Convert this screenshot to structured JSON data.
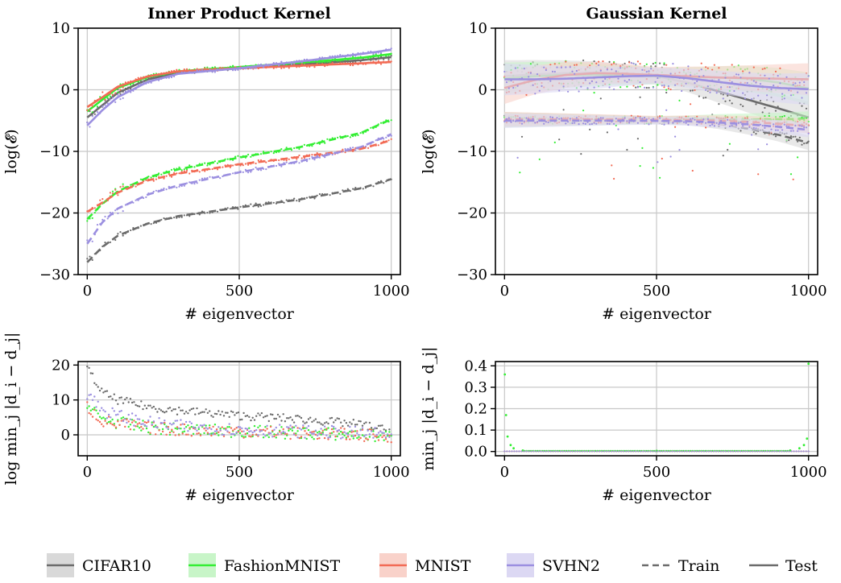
{
  "legend": {
    "items": [
      {
        "label": "CIFAR10",
        "color": "#6b6b6b",
        "band": "#d9d9d9"
      },
      {
        "label": "FashionMNIST",
        "color": "#33ee33",
        "band": "#c8f5c8"
      },
      {
        "label": "MNIST",
        "color": "#f26b55",
        "band": "#f9d2ca"
      },
      {
        "label": "SVHN2",
        "color": "#9b8fe0",
        "band": "#dcd8f3"
      }
    ],
    "train_label": "Train",
    "test_label": "Test"
  },
  "chart_data": [
    {
      "type": "line",
      "title": "Inner Product Kernel",
      "xlabel": "# eigenvector",
      "ylabel": "log(𝓔)",
      "xlim": [
        -30,
        1030
      ],
      "ylim": [
        -30,
        10
      ],
      "xticks": [
        "0",
        "500",
        "1000"
      ],
      "yticks": [
        "10",
        "0",
        "−10",
        "−20",
        "−30"
      ],
      "grid": true,
      "series": [
        {
          "name": "CIFAR10",
          "kind": "test",
          "x": [
            0,
            50,
            100,
            200,
            300,
            500,
            700,
            900,
            1000
          ],
          "y": [
            -4.5,
            -2.5,
            -0.5,
            1.7,
            2.8,
            3.5,
            4.1,
            4.8,
            5.3
          ]
        },
        {
          "name": "FashionMNIST",
          "kind": "test",
          "x": [
            0,
            50,
            100,
            200,
            300,
            500,
            700,
            900,
            1000
          ],
          "y": [
            -3.5,
            -1.6,
            0.3,
            2.1,
            3.0,
            3.7,
            4.4,
            5.2,
            5.8
          ]
        },
        {
          "name": "MNIST",
          "kind": "test",
          "x": [
            0,
            50,
            100,
            200,
            300,
            500,
            700,
            900,
            1000
          ],
          "y": [
            -2.8,
            -1.2,
            0.5,
            2.2,
            3.0,
            3.5,
            3.9,
            4.3,
            4.5
          ]
        },
        {
          "name": "SVHN2",
          "kind": "test",
          "x": [
            0,
            50,
            100,
            200,
            300,
            500,
            700,
            900,
            1000
          ],
          "y": [
            -5.8,
            -3.3,
            -1.2,
            1.3,
            2.6,
            3.5,
            4.6,
            5.8,
            6.5
          ]
        },
        {
          "name": "CIFAR10",
          "kind": "train",
          "x": [
            0,
            50,
            100,
            200,
            300,
            500,
            700,
            900,
            1000
          ],
          "y": [
            -28,
            -25.5,
            -23.7,
            -21.7,
            -20.5,
            -19.1,
            -17.8,
            -16,
            -14.5
          ]
        },
        {
          "name": "FashionMNIST",
          "kind": "train",
          "x": [
            0,
            50,
            100,
            200,
            300,
            500,
            700,
            900,
            1000
          ],
          "y": [
            -21,
            -18.5,
            -16.5,
            -14.2,
            -12.9,
            -11,
            -9.3,
            -7,
            -4.8
          ]
        },
        {
          "name": "MNIST",
          "kind": "train",
          "x": [
            0,
            50,
            100,
            200,
            300,
            500,
            700,
            900,
            1000
          ],
          "y": [
            -19.8,
            -18.3,
            -16.7,
            -14.7,
            -13.6,
            -12.1,
            -10.9,
            -9.6,
            -8.2
          ]
        },
        {
          "name": "SVHN2",
          "kind": "train",
          "x": [
            0,
            50,
            100,
            200,
            300,
            500,
            700,
            900,
            1000
          ],
          "y": [
            -25,
            -21.5,
            -19.3,
            -17,
            -15.5,
            -13.4,
            -11.6,
            -9.3,
            -7.2
          ]
        }
      ]
    },
    {
      "type": "line",
      "title": "Gaussian Kernel",
      "xlabel": "# eigenvector",
      "ylabel": "log(𝓔)",
      "xlim": [
        -30,
        1030
      ],
      "ylim": [
        -30,
        10
      ],
      "xticks": [
        "0",
        "500",
        "1000"
      ],
      "yticks": [
        "10",
        "0",
        "−10",
        "−20",
        "−30"
      ],
      "grid": true,
      "series": [
        {
          "name": "CIFAR10",
          "kind": "test",
          "x": [
            0,
            100,
            200,
            300,
            400,
            500,
            600,
            700,
            800,
            900,
            1000
          ],
          "y": [
            2.2,
            2.5,
            2.7,
            2.8,
            2.6,
            2.2,
            1.2,
            -0.2,
            -1.6,
            -3,
            -4.5
          ]
        },
        {
          "name": "FashionMNIST",
          "kind": "test",
          "x": [
            0,
            100,
            200,
            300,
            400,
            500,
            600,
            700,
            800,
            900,
            1000
          ],
          "y": [
            1.8,
            2.2,
            2.4,
            2.4,
            2.3,
            2.2,
            2.1,
            2.0,
            1.8,
            1.2,
            0.2
          ]
        },
        {
          "name": "MNIST",
          "kind": "test",
          "x": [
            0,
            100,
            200,
            300,
            400,
            500,
            600,
            700,
            800,
            900,
            1000
          ],
          "y": [
            0.3,
            1.6,
            2.4,
            2.7,
            2.6,
            2.4,
            2.2,
            2.0,
            1.9,
            1.8,
            1.7
          ]
        },
        {
          "name": "SVHN2",
          "kind": "test",
          "x": [
            0,
            100,
            200,
            300,
            400,
            500,
            600,
            700,
            800,
            900,
            1000
          ],
          "y": [
            1.7,
            1.7,
            1.8,
            2.0,
            2.2,
            2.3,
            1.9,
            1.3,
            0.7,
            0.3,
            0.1
          ]
        },
        {
          "name": "CIFAR10",
          "kind": "train",
          "x": [
            0,
            200,
            400,
            600,
            700,
            800,
            900,
            1000
          ],
          "y": [
            -4.8,
            -4.8,
            -4.9,
            -5.0,
            -5.5,
            -6.3,
            -7.3,
            -8.6
          ]
        },
        {
          "name": "FashionMNIST",
          "kind": "train",
          "x": [
            0,
            200,
            400,
            600,
            700,
            800,
            900,
            1000
          ],
          "y": [
            -4.9,
            -4.9,
            -4.9,
            -4.9,
            -4.8,
            -4.8,
            -4.8,
            -4.7
          ]
        },
        {
          "name": "MNIST",
          "kind": "train",
          "x": [
            0,
            200,
            400,
            600,
            700,
            800,
            900,
            1000
          ],
          "y": [
            -4.8,
            -4.8,
            -4.8,
            -4.9,
            -5.0,
            -5.2,
            -5.5,
            -5.9
          ]
        },
        {
          "name": "SVHN2",
          "kind": "train",
          "x": [
            0,
            200,
            400,
            600,
            700,
            800,
            900,
            1000
          ],
          "y": [
            -5.0,
            -5.0,
            -5.0,
            -5.1,
            -5.3,
            -5.6,
            -6.0,
            -6.5
          ]
        }
      ]
    },
    {
      "type": "scatter",
      "title": "",
      "xlabel": "# eigenvector",
      "ylabel": "log min_j |d_i − d_j|",
      "xlim": [
        -30,
        1030
      ],
      "ylim": [
        -6,
        21
      ],
      "xticks": [
        "0",
        "500",
        "1000"
      ],
      "yticks": [
        "20",
        "10",
        "0"
      ],
      "grid": true,
      "series": [
        {
          "name": "CIFAR10",
          "x": [
            0,
            50,
            100,
            200,
            300,
            500,
            700,
            900,
            1000
          ],
          "y": [
            19,
            12,
            10,
            8,
            7,
            5.5,
            4.5,
            3,
            1
          ]
        },
        {
          "name": "FashionMNIST",
          "x": [
            0,
            50,
            100,
            200,
            300,
            500,
            700,
            900,
            1000
          ],
          "y": [
            8,
            4.5,
            3.5,
            2,
            1.5,
            1,
            0.5,
            0,
            -0.5
          ]
        },
        {
          "name": "MNIST",
          "x": [
            0,
            50,
            100,
            200,
            300,
            500,
            700,
            900,
            1000
          ],
          "y": [
            8,
            4,
            3,
            2,
            1.5,
            1,
            0.5,
            0,
            -0.5
          ]
        },
        {
          "name": "SVHN2",
          "x": [
            0,
            50,
            100,
            200,
            300,
            500,
            700,
            900,
            1000
          ],
          "y": [
            12,
            7,
            5.5,
            3.5,
            2.5,
            1.5,
            1,
            0.5,
            0
          ]
        }
      ]
    },
    {
      "type": "scatter",
      "title": "",
      "xlabel": "# eigenvector",
      "ylabel": "min_j |d_i − d_j|",
      "xlim": [
        -30,
        1030
      ],
      "ylim": [
        -0.02,
        0.42
      ],
      "xticks": [
        "0",
        "500",
        "1000"
      ],
      "yticks": [
        "0.4",
        "0.3",
        "0.2",
        "0.1",
        "0.0"
      ],
      "grid": true,
      "series": [
        {
          "name": "FashionMNIST",
          "x": [
            1,
            5,
            10,
            20,
            30,
            60,
            500,
            940,
            970,
            985,
            995,
            1000
          ],
          "y": [
            0.36,
            0.17,
            0.07,
            0.03,
            0.015,
            0.005,
            0.003,
            0.005,
            0.015,
            0.03,
            0.06,
            0.41
          ]
        },
        {
          "name": "CIFAR10",
          "x": [
            0,
            500,
            1000
          ],
          "y": [
            0.002,
            0.002,
            0.002
          ]
        },
        {
          "name": "MNIST",
          "x": [
            0,
            500,
            1000
          ],
          "y": [
            0.002,
            0.002,
            0.002
          ]
        },
        {
          "name": "SVHN2",
          "x": [
            0,
            500,
            1000
          ],
          "y": [
            0.002,
            0.002,
            0.002
          ]
        }
      ]
    }
  ]
}
